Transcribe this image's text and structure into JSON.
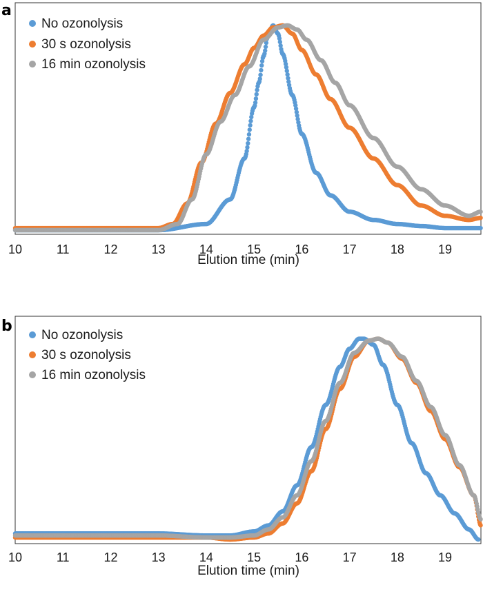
{
  "chart_data": [
    {
      "panel": "a",
      "type": "scatter",
      "xlabel": "Elution time (min)",
      "ylabel": "",
      "xlim": [
        10,
        19.75
      ],
      "xticks": [
        "10",
        "11",
        "12",
        "13",
        "14",
        "15",
        "16",
        "17",
        "18",
        "19"
      ],
      "ylim": [
        0,
        1.05
      ],
      "legend_position": "top-left",
      "series": [
        {
          "name": "No ozonolysis",
          "color": "#5b9bd5",
          "x": [
            10,
            11,
            12,
            13,
            14,
            14.5,
            14.8,
            15.0,
            15.1,
            15.2,
            15.3,
            15.4,
            15.5,
            15.6,
            15.8,
            16.0,
            16.3,
            16.6,
            17.0,
            17.5,
            18.0,
            18.5,
            19.0,
            19.75
          ],
          "y": [
            0.0,
            0.0,
            0.0,
            0.0,
            0.03,
            0.15,
            0.35,
            0.6,
            0.72,
            0.85,
            0.96,
            1.0,
            0.96,
            0.86,
            0.66,
            0.47,
            0.28,
            0.17,
            0.09,
            0.05,
            0.03,
            0.02,
            0.01,
            0.01
          ]
        },
        {
          "name": "30 s ozonolysis",
          "color": "#ed7d31",
          "x": [
            10,
            11,
            12,
            13,
            13.3,
            13.6,
            13.9,
            14.2,
            14.5,
            14.8,
            15.0,
            15.2,
            15.4,
            15.6,
            15.8,
            16.0,
            16.3,
            16.6,
            17.0,
            17.5,
            18.0,
            18.5,
            19.0,
            19.5,
            19.75
          ],
          "y": [
            0.01,
            0.01,
            0.01,
            0.01,
            0.03,
            0.13,
            0.33,
            0.52,
            0.67,
            0.81,
            0.89,
            0.95,
            0.99,
            1.0,
            0.96,
            0.88,
            0.76,
            0.64,
            0.5,
            0.35,
            0.22,
            0.12,
            0.07,
            0.05,
            0.06
          ]
        },
        {
          "name": "16 min ozonolysis",
          "color": "#a5a5a5",
          "x": [
            10,
            11,
            12,
            13,
            13.4,
            13.7,
            14.0,
            14.3,
            14.6,
            14.9,
            15.2,
            15.5,
            15.7,
            15.9,
            16.1,
            16.4,
            16.7,
            17.0,
            17.5,
            18.0,
            18.5,
            19.0,
            19.5,
            19.75
          ],
          "y": [
            0.0,
            0.0,
            0.0,
            0.0,
            0.03,
            0.15,
            0.37,
            0.53,
            0.66,
            0.8,
            0.93,
            0.99,
            1.0,
            0.98,
            0.93,
            0.83,
            0.72,
            0.61,
            0.45,
            0.31,
            0.2,
            0.12,
            0.07,
            0.09
          ]
        }
      ]
    },
    {
      "panel": "b",
      "type": "scatter",
      "xlabel": "Elution time (min)",
      "ylabel": "",
      "xlim": [
        10,
        19.75
      ],
      "xticks": [
        "10",
        "11",
        "12",
        "13",
        "14",
        "15",
        "16",
        "17",
        "18",
        "19"
      ],
      "ylim": [
        0,
        1.05
      ],
      "legend_position": "top-left",
      "series": [
        {
          "name": "No ozonolysis",
          "color": "#5b9bd5",
          "x": [
            10,
            11,
            12,
            13,
            14,
            14.5,
            15.0,
            15.3,
            15.6,
            15.9,
            16.2,
            16.5,
            16.8,
            17.0,
            17.2,
            17.3,
            17.5,
            17.7,
            18.0,
            18.3,
            18.6,
            18.9,
            19.2,
            19.5,
            19.7
          ],
          "y": [
            0.03,
            0.03,
            0.03,
            0.03,
            0.02,
            0.02,
            0.04,
            0.07,
            0.14,
            0.27,
            0.46,
            0.67,
            0.86,
            0.95,
            1.0,
            1.0,
            0.97,
            0.87,
            0.67,
            0.48,
            0.33,
            0.22,
            0.13,
            0.05,
            0.0
          ]
        },
        {
          "name": "30 s ozonolysis",
          "color": "#ed7d31",
          "x": [
            10,
            11,
            12,
            13,
            14,
            14.5,
            15.0,
            15.3,
            15.6,
            15.9,
            16.2,
            16.5,
            16.8,
            17.1,
            17.4,
            17.6,
            17.8,
            18.1,
            18.4,
            18.7,
            19.0,
            19.3,
            19.6,
            19.75
          ],
          "y": [
            0.01,
            0.01,
            0.01,
            0.01,
            0.01,
            0.0,
            0.01,
            0.03,
            0.08,
            0.18,
            0.34,
            0.55,
            0.75,
            0.91,
            0.99,
            1.0,
            0.98,
            0.9,
            0.78,
            0.64,
            0.5,
            0.36,
            0.22,
            0.07
          ]
        },
        {
          "name": "16 min ozonolysis",
          "color": "#a5a5a5",
          "x": [
            10,
            11,
            12,
            13,
            14,
            14.5,
            15.0,
            15.3,
            15.6,
            15.9,
            16.2,
            16.5,
            16.8,
            17.1,
            17.4,
            17.6,
            17.8,
            18.1,
            18.4,
            18.7,
            19.0,
            19.3,
            19.6,
            19.75
          ],
          "y": [
            0.02,
            0.02,
            0.02,
            0.02,
            0.01,
            0.01,
            0.02,
            0.05,
            0.11,
            0.22,
            0.39,
            0.59,
            0.78,
            0.93,
            0.99,
            1.0,
            0.98,
            0.91,
            0.79,
            0.66,
            0.52,
            0.37,
            0.22,
            0.1
          ]
        }
      ]
    }
  ]
}
